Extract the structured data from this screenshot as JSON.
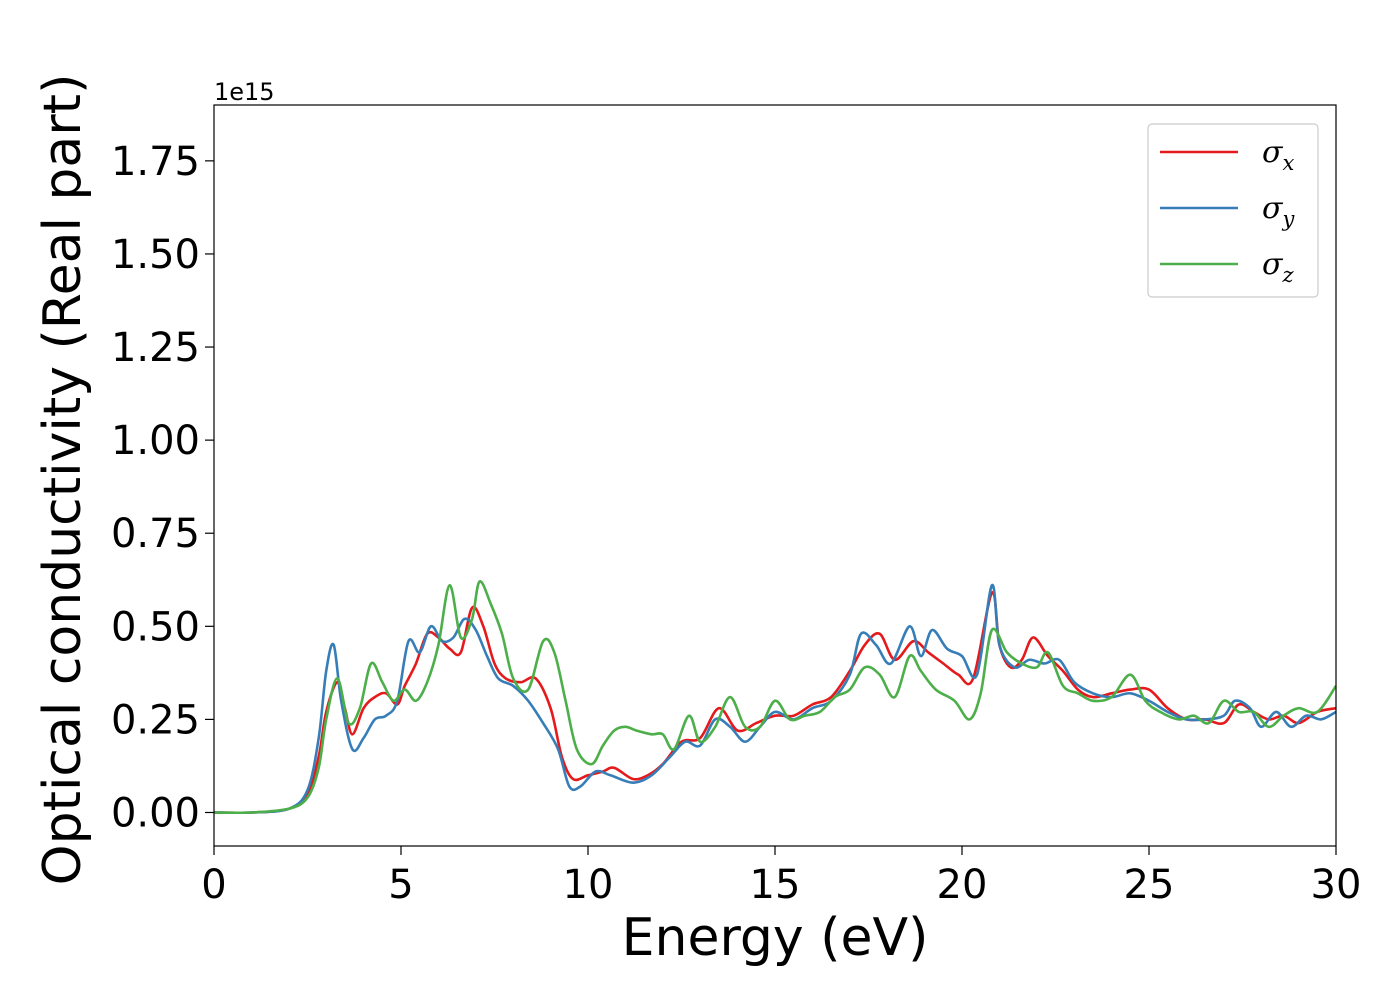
{
  "chart_data": {
    "type": "line",
    "xlabel": "Energy (eV)",
    "ylabel": "Optical conductivity (Real part)",
    "y_offset_label": "1e15",
    "xlim": [
      0,
      30
    ],
    "ylim": [
      -0.09,
      1.9
    ],
    "x_ticks": [
      0,
      5,
      10,
      15,
      20,
      25,
      30
    ],
    "x_tick_labels": [
      "0",
      "5",
      "10",
      "15",
      "20",
      "25",
      "30"
    ],
    "y_ticks": [
      0.0,
      0.25,
      0.5,
      0.75,
      1.0,
      1.25,
      1.5,
      1.75
    ],
    "y_tick_labels": [
      "0.00",
      "0.25",
      "0.50",
      "0.75",
      "1.00",
      "1.25",
      "1.50",
      "1.75"
    ],
    "grid": false,
    "legend_position": "top-right",
    "series": [
      {
        "name": "σ",
        "subscript": "x",
        "color": "#e41a1c",
        "points": [
          [
            0,
            0
          ],
          [
            1,
            0
          ],
          [
            2,
            0.01
          ],
          [
            2.5,
            0.05
          ],
          [
            2.8,
            0.15
          ],
          [
            3.0,
            0.27
          ],
          [
            3.3,
            0.35
          ],
          [
            3.5,
            0.28
          ],
          [
            3.7,
            0.21
          ],
          [
            4.0,
            0.28
          ],
          [
            4.3,
            0.31
          ],
          [
            4.6,
            0.32
          ],
          [
            4.9,
            0.29
          ],
          [
            5.1,
            0.34
          ],
          [
            5.4,
            0.4
          ],
          [
            5.7,
            0.48
          ],
          [
            6.0,
            0.47
          ],
          [
            6.3,
            0.44
          ],
          [
            6.6,
            0.43
          ],
          [
            6.9,
            0.55
          ],
          [
            7.2,
            0.5
          ],
          [
            7.5,
            0.4
          ],
          [
            7.8,
            0.36
          ],
          [
            8.2,
            0.35
          ],
          [
            8.6,
            0.36
          ],
          [
            9.0,
            0.28
          ],
          [
            9.3,
            0.15
          ],
          [
            9.6,
            0.09
          ],
          [
            10.0,
            0.1
          ],
          [
            10.4,
            0.11
          ],
          [
            10.7,
            0.12
          ],
          [
            11.2,
            0.09
          ],
          [
            11.6,
            0.1
          ],
          [
            12.0,
            0.13
          ],
          [
            12.5,
            0.19
          ],
          [
            13.0,
            0.2
          ],
          [
            13.5,
            0.28
          ],
          [
            14.0,
            0.22
          ],
          [
            14.5,
            0.24
          ],
          [
            15.0,
            0.26
          ],
          [
            15.5,
            0.26
          ],
          [
            16.0,
            0.29
          ],
          [
            16.5,
            0.31
          ],
          [
            17.0,
            0.38
          ],
          [
            17.4,
            0.45
          ],
          [
            17.8,
            0.48
          ],
          [
            18.2,
            0.41
          ],
          [
            18.7,
            0.46
          ],
          [
            19.1,
            0.43
          ],
          [
            19.5,
            0.4
          ],
          [
            19.9,
            0.37
          ],
          [
            20.3,
            0.36
          ],
          [
            20.8,
            0.59
          ],
          [
            21.0,
            0.45
          ],
          [
            21.3,
            0.39
          ],
          [
            21.6,
            0.41
          ],
          [
            21.9,
            0.47
          ],
          [
            22.3,
            0.42
          ],
          [
            22.7,
            0.38
          ],
          [
            23.1,
            0.33
          ],
          [
            23.5,
            0.31
          ],
          [
            24.0,
            0.32
          ],
          [
            24.5,
            0.33
          ],
          [
            25.0,
            0.33
          ],
          [
            25.5,
            0.28
          ],
          [
            26.0,
            0.25
          ],
          [
            26.5,
            0.25
          ],
          [
            27.0,
            0.24
          ],
          [
            27.4,
            0.29
          ],
          [
            27.8,
            0.27
          ],
          [
            28.2,
            0.25
          ],
          [
            28.6,
            0.26
          ],
          [
            29.0,
            0.24
          ],
          [
            29.5,
            0.27
          ],
          [
            30.0,
            0.28
          ]
        ]
      },
      {
        "name": "σ",
        "subscript": "y",
        "color": "#377eb8",
        "points": [
          [
            0,
            0
          ],
          [
            1,
            0
          ],
          [
            2,
            0.01
          ],
          [
            2.5,
            0.06
          ],
          [
            2.8,
            0.2
          ],
          [
            3.0,
            0.38
          ],
          [
            3.2,
            0.45
          ],
          [
            3.4,
            0.3
          ],
          [
            3.7,
            0.17
          ],
          [
            4.0,
            0.2
          ],
          [
            4.3,
            0.25
          ],
          [
            4.6,
            0.26
          ],
          [
            4.9,
            0.3
          ],
          [
            5.2,
            0.46
          ],
          [
            5.5,
            0.43
          ],
          [
            5.8,
            0.5
          ],
          [
            6.1,
            0.46
          ],
          [
            6.4,
            0.47
          ],
          [
            6.7,
            0.52
          ],
          [
            7.0,
            0.49
          ],
          [
            7.3,
            0.42
          ],
          [
            7.6,
            0.36
          ],
          [
            8.0,
            0.34
          ],
          [
            8.4,
            0.3
          ],
          [
            8.8,
            0.24
          ],
          [
            9.2,
            0.17
          ],
          [
            9.5,
            0.07
          ],
          [
            9.8,
            0.07
          ],
          [
            10.2,
            0.11
          ],
          [
            10.6,
            0.1
          ],
          [
            11.2,
            0.08
          ],
          [
            11.7,
            0.1
          ],
          [
            12.2,
            0.15
          ],
          [
            12.6,
            0.19
          ],
          [
            13.0,
            0.18
          ],
          [
            13.4,
            0.25
          ],
          [
            13.8,
            0.23
          ],
          [
            14.2,
            0.19
          ],
          [
            14.6,
            0.23
          ],
          [
            15.0,
            0.27
          ],
          [
            15.5,
            0.25
          ],
          [
            16.0,
            0.28
          ],
          [
            16.5,
            0.3
          ],
          [
            17.0,
            0.37
          ],
          [
            17.3,
            0.48
          ],
          [
            17.7,
            0.45
          ],
          [
            18.1,
            0.4
          ],
          [
            18.6,
            0.5
          ],
          [
            18.9,
            0.42
          ],
          [
            19.2,
            0.49
          ],
          [
            19.6,
            0.44
          ],
          [
            20.0,
            0.42
          ],
          [
            20.4,
            0.37
          ],
          [
            20.8,
            0.61
          ],
          [
            21.0,
            0.45
          ],
          [
            21.4,
            0.39
          ],
          [
            21.8,
            0.41
          ],
          [
            22.2,
            0.4
          ],
          [
            22.6,
            0.41
          ],
          [
            23.0,
            0.35
          ],
          [
            23.5,
            0.32
          ],
          [
            24.0,
            0.31
          ],
          [
            24.5,
            0.32
          ],
          [
            25.0,
            0.3
          ],
          [
            25.5,
            0.27
          ],
          [
            26.0,
            0.25
          ],
          [
            26.5,
            0.25
          ],
          [
            27.0,
            0.26
          ],
          [
            27.3,
            0.3
          ],
          [
            27.7,
            0.28
          ],
          [
            28.0,
            0.23
          ],
          [
            28.4,
            0.27
          ],
          [
            28.8,
            0.23
          ],
          [
            29.2,
            0.26
          ],
          [
            29.6,
            0.25
          ],
          [
            30.0,
            0.27
          ]
        ]
      },
      {
        "name": "σ",
        "subscript": "z",
        "color": "#4daf4a",
        "points": [
          [
            0,
            0
          ],
          [
            1,
            0
          ],
          [
            2,
            0.01
          ],
          [
            2.5,
            0.04
          ],
          [
            2.8,
            0.12
          ],
          [
            3.0,
            0.25
          ],
          [
            3.3,
            0.36
          ],
          [
            3.6,
            0.24
          ],
          [
            3.9,
            0.28
          ],
          [
            4.2,
            0.4
          ],
          [
            4.5,
            0.35
          ],
          [
            4.8,
            0.3
          ],
          [
            5.1,
            0.33
          ],
          [
            5.4,
            0.3
          ],
          [
            5.7,
            0.35
          ],
          [
            6.0,
            0.45
          ],
          [
            6.3,
            0.61
          ],
          [
            6.6,
            0.47
          ],
          [
            6.9,
            0.52
          ],
          [
            7.1,
            0.62
          ],
          [
            7.4,
            0.56
          ],
          [
            7.7,
            0.48
          ],
          [
            8.0,
            0.36
          ],
          [
            8.4,
            0.33
          ],
          [
            8.8,
            0.46
          ],
          [
            9.1,
            0.43
          ],
          [
            9.4,
            0.3
          ],
          [
            9.7,
            0.17
          ],
          [
            10.1,
            0.13
          ],
          [
            10.4,
            0.18
          ],
          [
            10.7,
            0.22
          ],
          [
            11.0,
            0.23
          ],
          [
            11.3,
            0.22
          ],
          [
            11.7,
            0.21
          ],
          [
            12.0,
            0.21
          ],
          [
            12.3,
            0.17
          ],
          [
            12.7,
            0.26
          ],
          [
            13.0,
            0.19
          ],
          [
            13.4,
            0.23
          ],
          [
            13.8,
            0.31
          ],
          [
            14.2,
            0.23
          ],
          [
            14.6,
            0.23
          ],
          [
            15.0,
            0.3
          ],
          [
            15.4,
            0.25
          ],
          [
            15.8,
            0.26
          ],
          [
            16.2,
            0.27
          ],
          [
            16.6,
            0.31
          ],
          [
            17.0,
            0.33
          ],
          [
            17.4,
            0.39
          ],
          [
            17.8,
            0.37
          ],
          [
            18.2,
            0.31
          ],
          [
            18.6,
            0.42
          ],
          [
            18.9,
            0.38
          ],
          [
            19.3,
            0.33
          ],
          [
            19.8,
            0.3
          ],
          [
            20.2,
            0.25
          ],
          [
            20.5,
            0.32
          ],
          [
            20.8,
            0.49
          ],
          [
            21.2,
            0.43
          ],
          [
            21.6,
            0.4
          ],
          [
            22.0,
            0.39
          ],
          [
            22.3,
            0.43
          ],
          [
            22.7,
            0.34
          ],
          [
            23.1,
            0.32
          ],
          [
            23.5,
            0.3
          ],
          [
            24.0,
            0.31
          ],
          [
            24.5,
            0.37
          ],
          [
            24.9,
            0.3
          ],
          [
            25.3,
            0.27
          ],
          [
            25.8,
            0.25
          ],
          [
            26.2,
            0.26
          ],
          [
            26.6,
            0.24
          ],
          [
            27.0,
            0.3
          ],
          [
            27.4,
            0.27
          ],
          [
            27.8,
            0.27
          ],
          [
            28.2,
            0.23
          ],
          [
            28.6,
            0.26
          ],
          [
            29.0,
            0.28
          ],
          [
            29.5,
            0.27
          ],
          [
            30.0,
            0.34
          ]
        ]
      }
    ]
  }
}
